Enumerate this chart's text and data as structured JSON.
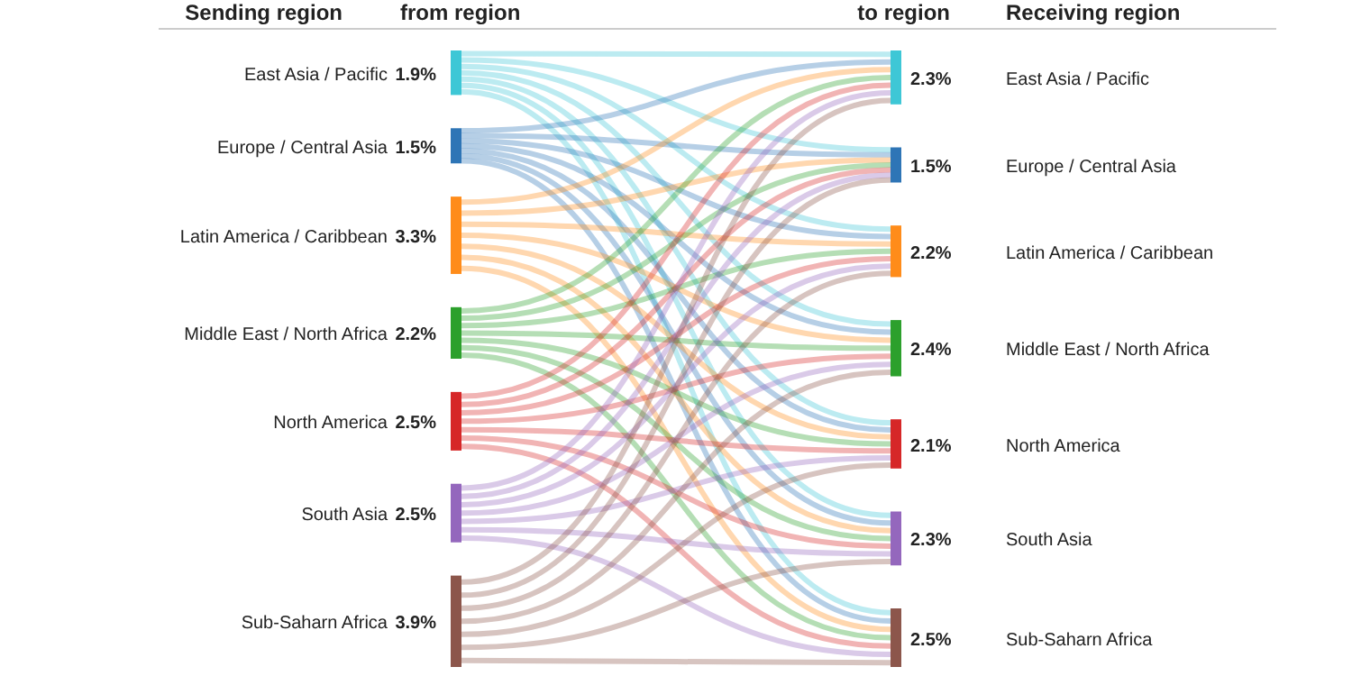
{
  "chart_data": {
    "type": "other",
    "annotations": [
      "Sending region",
      "from region",
      "to region",
      "Receiving region"
    ],
    "categories": [
      "East Asia / Pacific",
      "Europe / Central Asia",
      "Latin America / Caribbean",
      "Middle East / North Africa",
      "North America",
      "South Asia",
      "Sub-Saharn Africa"
    ],
    "colors": [
      "#3ec7d6",
      "#2e75b6",
      "#ff8c1a",
      "#2ca02c",
      "#d62728",
      "#9467bd",
      "#8c564b"
    ],
    "series": [
      {
        "values": [
          1.9,
          1.5,
          3.3,
          2.2,
          2.5,
          2.5,
          3.9
        ],
        "value_labels": [
          "1.9%",
          "1.5%",
          "3.3%",
          "2.2%",
          "2.5%",
          "2.5%",
          "3.9%"
        ]
      },
      {
        "values": [
          2.3,
          1.5,
          2.2,
          2.4,
          2.1,
          2.3,
          2.5
        ],
        "value_labels": [
          "2.3%",
          "1.5%",
          "2.2%",
          "2.4%",
          "2.1%",
          "2.3%",
          "2.5%"
        ]
      }
    ]
  }
}
